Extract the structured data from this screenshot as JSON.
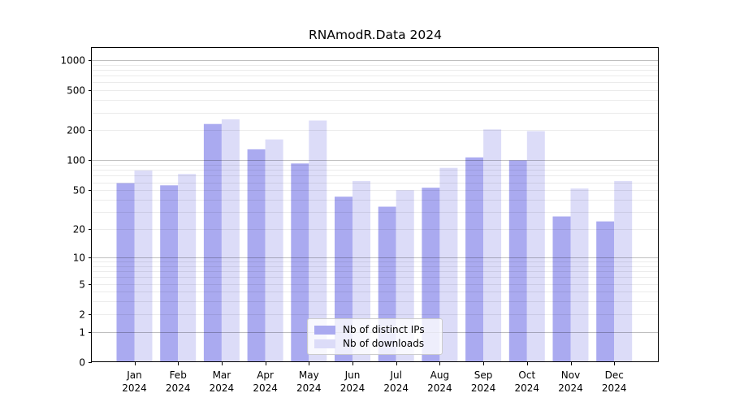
{
  "chart_data": {
    "type": "bar",
    "title": "RNAmodR.Data 2024",
    "categories": [
      "Jan",
      "Feb",
      "Mar",
      "Apr",
      "May",
      "Jun",
      "Jul",
      "Aug",
      "Sep",
      "Oct",
      "Nov",
      "Dec"
    ],
    "x_year_label": "2024",
    "series": [
      {
        "name": "Nb of distinct IPs",
        "color": "#aaaaf0",
        "values": [
          59,
          56,
          231,
          129,
          93,
          43,
          34,
          53,
          107,
          100,
          27,
          24
        ]
      },
      {
        "name": "Nb of downloads",
        "color": "#dcdcf8",
        "values": [
          79,
          73,
          257,
          162,
          250,
          62,
          50,
          84,
          204,
          196,
          52,
          62
        ]
      }
    ],
    "xlabel": "",
    "ylabel": "",
    "y_scale": "log10(value+1)",
    "y_ticks": [
      0,
      1,
      2,
      5,
      10,
      20,
      50,
      100,
      200,
      500,
      1000
    ],
    "ylim": [
      0,
      1320
    ],
    "grid": {
      "enabled": true,
      "major_at": [
        1,
        10,
        100,
        1000
      ],
      "minor": "2-9 of each decade"
    },
    "legend_position": "lower center",
    "colors": {
      "axis": "#000000",
      "tick_label": "#000000",
      "grid_major": "rgba(0,0,0,0.25)",
      "grid_minor": "rgba(0,0,0,0.08)",
      "plot_background": "#ffffff"
    }
  }
}
